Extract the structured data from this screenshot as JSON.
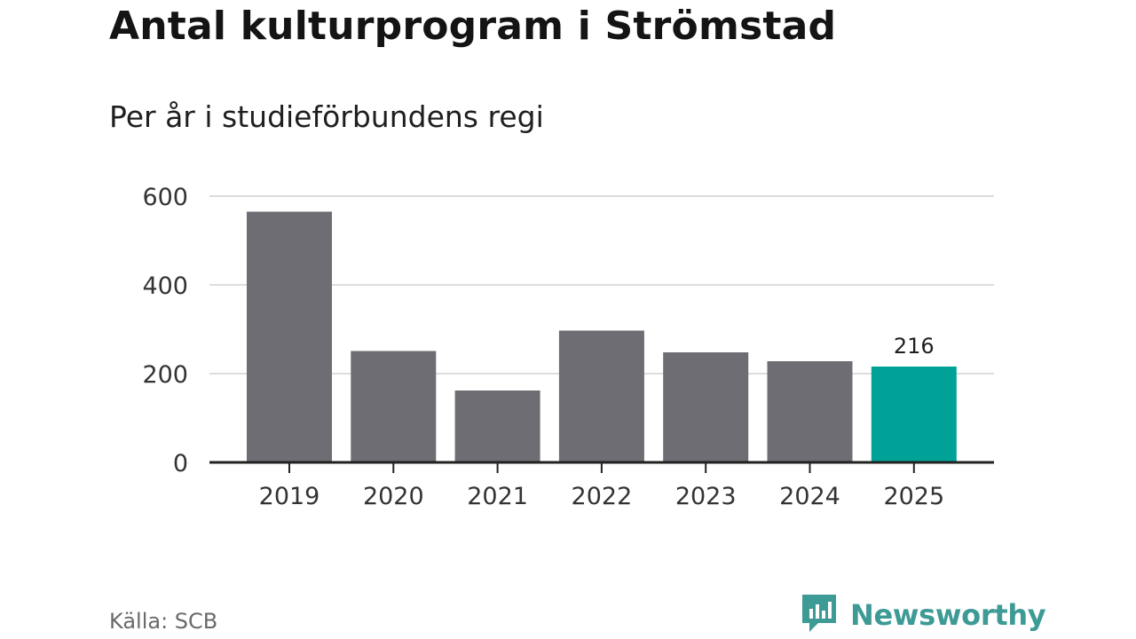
{
  "chart_data": {
    "type": "bar",
    "title": "Antal kulturprogram i Strömstad",
    "subtitle": "Per år i studieförbundens regi",
    "categories": [
      "2019",
      "2020",
      "2021",
      "2022",
      "2023",
      "2024",
      "2025"
    ],
    "values": [
      565,
      251,
      162,
      297,
      248,
      228,
      216
    ],
    "highlight_index": 6,
    "data_labels": [
      {
        "index": 6,
        "text": "216"
      }
    ],
    "ylim": [
      0,
      600
    ],
    "yticks": [
      0,
      200,
      400,
      600
    ],
    "grid": true,
    "xlabel": "",
    "ylabel": "",
    "colors": {
      "bar": "#6e6d73",
      "highlight": "#00a298",
      "grid": "#dddddd",
      "axis": "#222222"
    }
  },
  "source": "Källa: SCB",
  "brand": {
    "name": "Newsworthy",
    "icon": "newsworthy-logo-icon",
    "color": "#3d9a95"
  }
}
